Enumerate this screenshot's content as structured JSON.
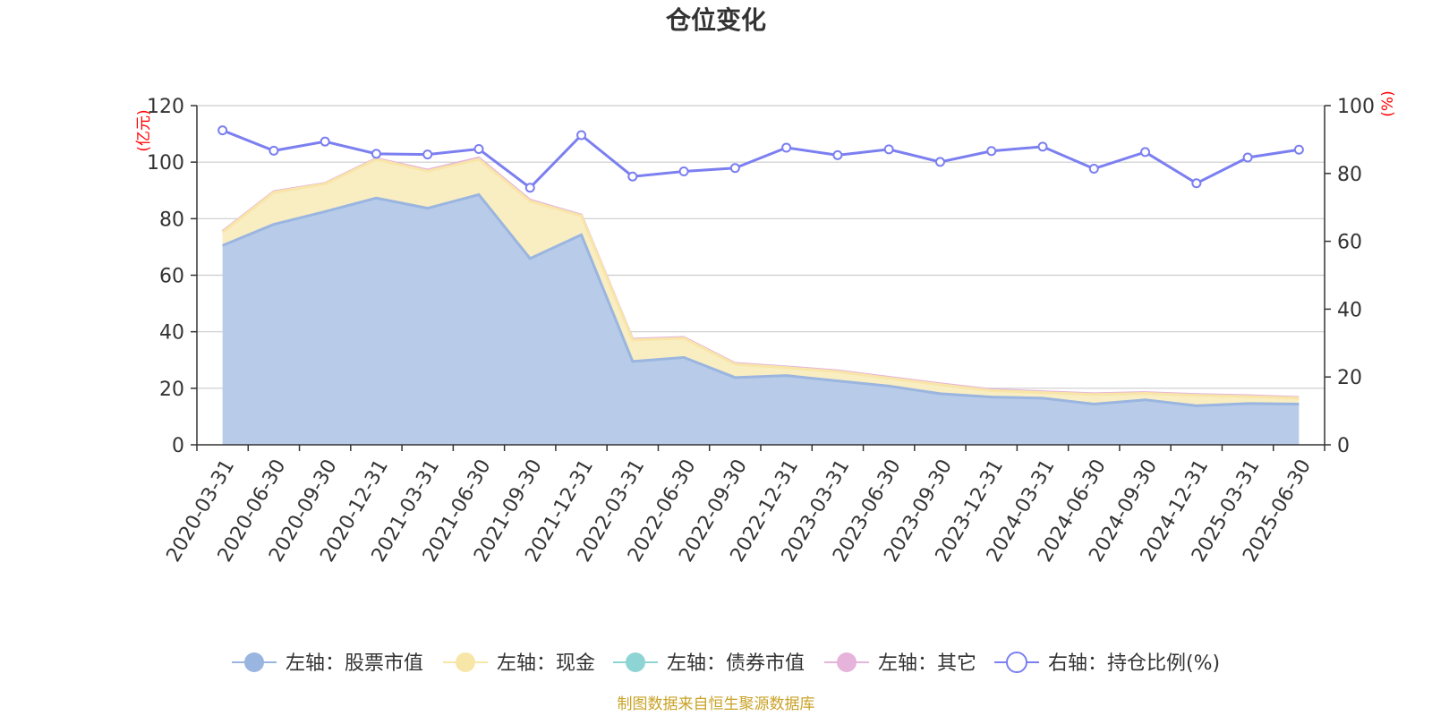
{
  "title": "仓位变化",
  "source": "制图数据来自恒生聚源数据库",
  "colors": {
    "stock": "#9ab5e0",
    "stock_fill": "#b8cce9",
    "cash": "#f8e6a8",
    "cash_fill": "#f9edc2",
    "bond": "#8fd4d4",
    "other": "#e6b3da",
    "ratio": "#7b7ff0",
    "grid": "#cccccc",
    "axis": "#333333",
    "unit": "#ff0000",
    "source": "#c9a227"
  },
  "chart_data": {
    "type": "area",
    "title": "仓位变化",
    "x": [
      "2020-03-31",
      "2020-06-30",
      "2020-09-30",
      "2020-12-31",
      "2021-03-31",
      "2021-06-30",
      "2021-09-30",
      "2021-12-31",
      "2022-03-31",
      "2022-06-30",
      "2022-09-30",
      "2022-12-31",
      "2023-03-31",
      "2023-06-30",
      "2023-09-30",
      "2023-12-31",
      "2024-03-31",
      "2024-06-30",
      "2024-09-30",
      "2024-12-31",
      "2025-03-31",
      "2025-06-30"
    ],
    "left_axis": {
      "unit": "(亿元)",
      "ylim": [
        0,
        120
      ],
      "ticks": [
        "0",
        "20",
        "40",
        "60",
        "80",
        "100",
        "120"
      ]
    },
    "right_axis": {
      "unit": "(%)",
      "ylim": [
        0,
        100
      ],
      "ticks": [
        "0",
        "20",
        "40",
        "60",
        "80",
        "100"
      ]
    },
    "grid": true,
    "legend_position": "bottom",
    "series": [
      {
        "name": "左轴：股票市值",
        "axis": "left",
        "stacked": true,
        "color_key": "stock",
        "values": [
          70.5,
          78,
          82.5,
          87.3,
          83.7,
          88.5,
          65.9,
          74.3,
          29.5,
          30.9,
          23.8,
          24.5,
          22.6,
          20.8,
          18.1,
          16.9,
          16.5,
          14.4,
          15.9,
          13.8,
          14.6,
          14.4
        ]
      },
      {
        "name": "左轴：现金",
        "axis": "left",
        "stacked": true,
        "color_key": "cash",
        "values": [
          4.7,
          11.3,
          9.8,
          13.7,
          13.1,
          12.5,
          20.3,
          6.7,
          7.6,
          6.8,
          4.7,
          2.8,
          3.3,
          2.8,
          3.2,
          2.3,
          2.0,
          3.4,
          2.3,
          3.7,
          2.5,
          2.1
        ]
      },
      {
        "name": "左轴：债券市值",
        "axis": "left",
        "stacked": true,
        "color_key": "bond",
        "values": [
          0,
          0,
          0,
          0,
          0,
          0,
          0,
          0,
          0,
          0,
          0,
          0,
          0,
          0,
          0,
          0,
          0,
          0,
          0,
          0,
          0,
          0
        ]
      },
      {
        "name": "左轴：其它",
        "axis": "left",
        "stacked": true,
        "color_key": "other",
        "values": [
          0.3,
          0.3,
          0.2,
          0.3,
          0.4,
          0.5,
          0.4,
          0.3,
          0.3,
          0.3,
          0.3,
          0.3,
          0.3,
          0.3,
          0.3,
          0.3,
          0.3,
          0.3,
          0.3,
          0.3,
          0.3,
          0.3
        ]
      },
      {
        "name": "右轴：持仓比例(%)",
        "axis": "right",
        "type": "line",
        "color_key": "ratio",
        "values": [
          92.7,
          86.7,
          89.4,
          85.8,
          85.6,
          87.2,
          75.8,
          91.3,
          79.1,
          80.6,
          81.6,
          87.6,
          85.4,
          87.1,
          83.4,
          86.6,
          87.9,
          81.4,
          86.3,
          77.1,
          84.7,
          87.0
        ]
      }
    ]
  }
}
